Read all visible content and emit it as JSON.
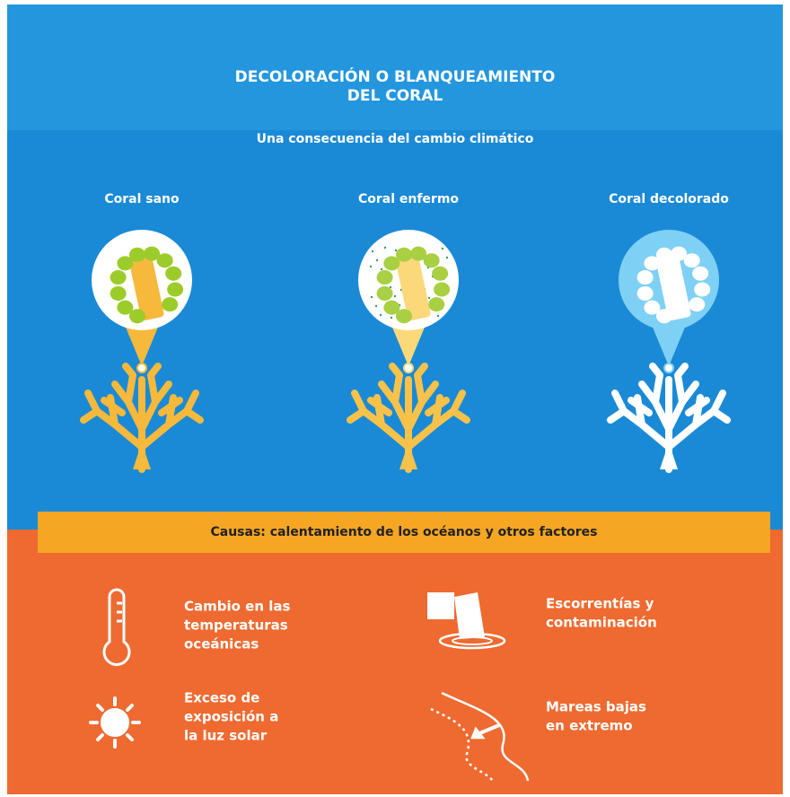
{
  "header": {
    "title_lines": [
      "DECOLORACIÓN O BLANQUEAMIENTO",
      "DEL CORAL"
    ],
    "subtitle": "Una consecuencia del cambio climático"
  },
  "stages": [
    {
      "label": "Coral sano"
    },
    {
      "label": "Coral enfermo"
    },
    {
      "label": "Coral decolorado"
    }
  ],
  "causes": {
    "title": "Causas: calentamiento de los océanos y otros factores",
    "items": [
      {
        "lines": [
          "Cambio en las",
          "temperaturas",
          "oceánicas"
        ]
      },
      {
        "lines": [
          "Escorrentías y",
          "contaminación"
        ]
      },
      {
        "lines": [
          "Exceso de",
          "exposición a",
          "la luz solar"
        ]
      },
      {
        "lines": [
          "Mareas bajas",
          "en extremo"
        ]
      }
    ]
  }
}
